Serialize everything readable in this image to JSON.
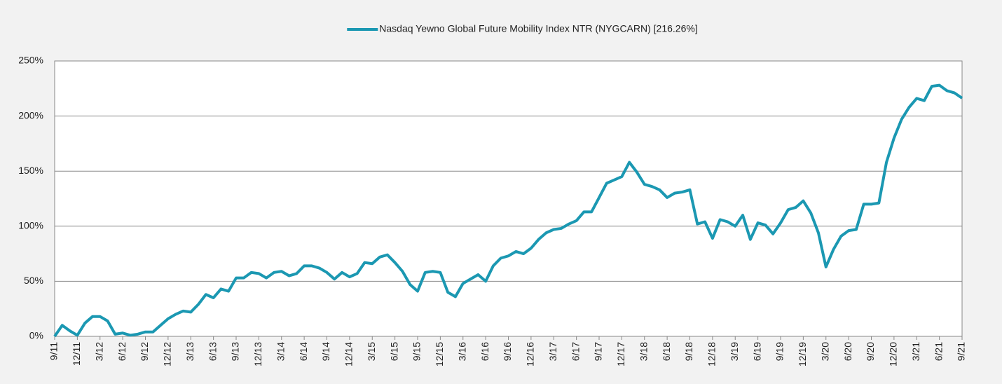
{
  "chart_data": {
    "type": "line",
    "categories": [
      "9/11",
      null,
      null,
      "12/11",
      null,
      null,
      "3/12",
      null,
      null,
      "6/12",
      null,
      null,
      "9/12",
      null,
      null,
      "12/12",
      null,
      null,
      "3/13",
      null,
      null,
      "6/13",
      null,
      null,
      "9/13",
      null,
      null,
      "12/13",
      null,
      null,
      "3/14",
      null,
      null,
      "6/14",
      null,
      null,
      "9/14",
      null,
      null,
      "12/14",
      null,
      null,
      "3/15",
      null,
      null,
      "6/15",
      null,
      null,
      "9/15",
      null,
      null,
      "12/15",
      null,
      null,
      "3/16",
      null,
      null,
      "6/16",
      null,
      null,
      "9/16",
      null,
      null,
      "12/16",
      null,
      null,
      "3/17",
      null,
      null,
      "6/17",
      null,
      null,
      "9/17",
      null,
      null,
      "12/17",
      null,
      null,
      "3/18",
      null,
      null,
      "6/18",
      null,
      null,
      "9/18",
      null,
      null,
      "12/18",
      null,
      null,
      "3/19",
      null,
      null,
      "6/19",
      null,
      null,
      "9/19",
      null,
      null,
      "12/19",
      null,
      null,
      "3/20",
      null,
      null,
      "6/20",
      null,
      null,
      "9/20",
      null,
      null,
      "12/20",
      null,
      null,
      "3/21",
      null,
      null,
      "6/21",
      null,
      null,
      "9/21"
    ],
    "series": [
      {
        "name": "Nasdaq Yewno Global Future Mobility Index NTR (NYGCARN) [216.26%]",
        "color": "#1b98b2",
        "values": [
          0,
          10,
          5,
          1,
          12,
          18,
          18,
          14,
          2,
          3,
          1,
          2,
          4,
          4,
          10,
          16,
          20,
          23,
          22,
          29,
          38,
          35,
          43,
          41,
          53,
          53,
          58,
          57,
          53,
          58,
          59,
          55,
          57,
          64,
          64,
          62,
          58,
          52,
          58,
          54,
          57,
          67,
          66,
          72,
          74,
          67,
          59,
          47,
          41,
          58,
          59,
          58,
          40,
          36,
          48,
          52,
          56,
          50,
          64,
          71,
          73,
          77,
          75,
          80,
          88,
          94,
          97,
          98,
          102,
          105,
          113,
          113,
          126,
          139,
          142,
          145,
          158,
          149,
          138,
          136,
          133,
          126,
          130,
          131,
          133,
          102,
          104,
          89,
          106,
          104,
          100,
          110,
          88,
          103,
          101,
          93,
          103,
          115,
          117,
          123,
          112,
          94,
          63,
          79,
          91,
          96,
          97,
          120,
          120,
          121,
          158,
          180,
          197,
          208,
          216,
          214,
          227,
          228,
          223,
          221,
          216.26
        ]
      }
    ],
    "ylim": [
      0,
      250
    ],
    "yticks": [
      {
        "value": 0,
        "label": "0%"
      },
      {
        "value": 50,
        "label": "50%"
      },
      {
        "value": 100,
        "label": "100%"
      },
      {
        "value": 150,
        "label": "150%"
      },
      {
        "value": 200,
        "label": "200%"
      },
      {
        "value": 250,
        "label": "250%"
      }
    ],
    "grid": true,
    "legend": "top"
  }
}
